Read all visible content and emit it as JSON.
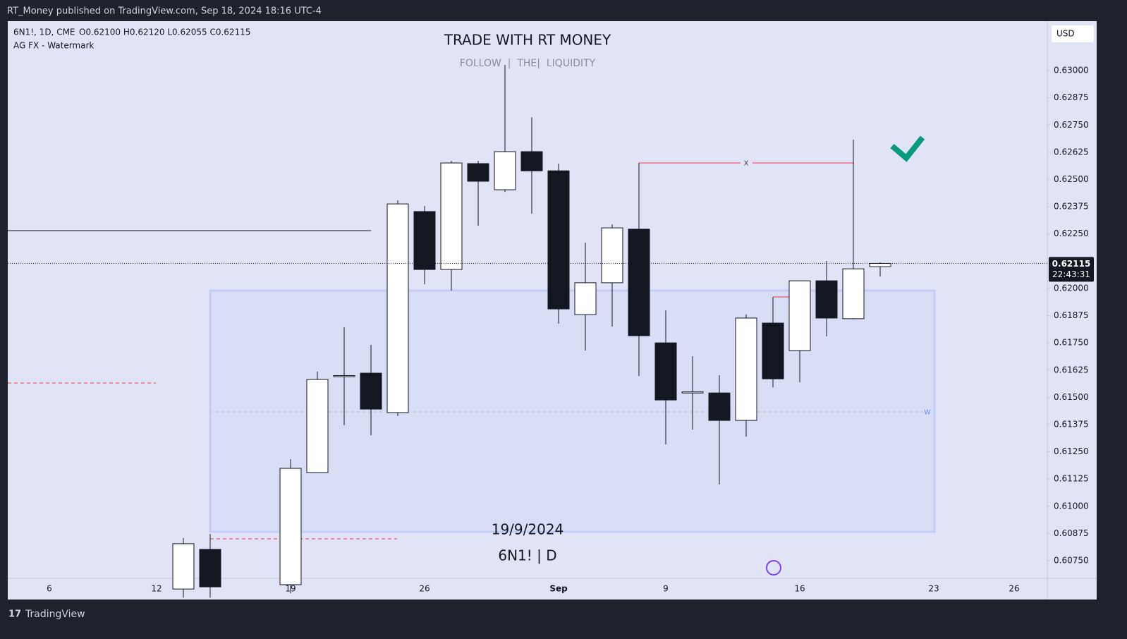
{
  "header": {
    "publisher": "RT_Money published on TradingView.com, Sep 18, 2024 18:16 UTC-4",
    "brand": "TradingView"
  },
  "chart_data": {
    "type": "candlestick",
    "symbol": "6N1!, 1D, CME",
    "ohlc_legend": "O0.62100 H0.62120 L0.62055 C0.62115",
    "indicator": "AG FX - Watermark",
    "title": "TRADE WITH RT MONEY",
    "subtitle": "FOLLOW  |  THE|  LIQUIDITY",
    "annotations": [
      "19/9/2024",
      "6N1! | D",
      "x",
      "w"
    ],
    "currency": "USD",
    "last_price": 0.62115,
    "countdown": "22:43:31",
    "categories": [
      "6",
      null,
      null,
      null,
      "12",
      null,
      null,
      null,
      null,
      "19",
      null,
      null,
      null,
      null,
      "26",
      null,
      null,
      null,
      null,
      "Sep",
      null,
      null,
      null,
      "9",
      null,
      null,
      null,
      null,
      "16",
      null,
      null,
      null,
      null,
      "23",
      null,
      null,
      "26"
    ],
    "open": [
      null,
      null,
      null,
      null,
      null,
      0.6062,
      0.60802,
      null,
      null,
      0.6064,
      0.61155,
      0.61595,
      0.61611,
      0.6143,
      0.62353,
      0.62087,
      0.62573,
      0.62453,
      0.62628,
      0.6254,
      0.6188,
      0.62026,
      0.62272,
      0.6175,
      0.6152,
      0.6152,
      0.61394,
      0.61841,
      0.61715,
      0.62035,
      0.61861,
      0.621,
      null,
      null,
      null,
      null,
      null
    ],
    "high": [
      null,
      null,
      null,
      null,
      null,
      0.60854,
      0.60873,
      null,
      null,
      0.61216,
      0.61618,
      0.61822,
      0.61741,
      0.62404,
      0.62378,
      0.62586,
      0.62586,
      0.63026,
      0.62786,
      0.62573,
      0.6221,
      0.62294,
      0.62576,
      0.61899,
      0.61689,
      0.61601,
      0.61881,
      0.61961,
      0.62035,
      0.62126,
      0.62683,
      0.6212,
      null,
      null,
      null,
      null,
      null
    ],
    "low": [
      null,
      null,
      null,
      null,
      null,
      0.6058,
      0.6058,
      null,
      null,
      0.606,
      0.61155,
      0.61372,
      0.61326,
      0.61414,
      0.62019,
      0.6199,
      0.62288,
      0.62443,
      0.62343,
      0.61838,
      0.61715,
      0.61825,
      0.61598,
      0.61284,
      0.61352,
      0.611,
      0.6132,
      0.61546,
      0.61569,
      0.6178,
      0.61858,
      0.62055,
      null,
      null,
      null,
      null,
      null
    ],
    "close": [
      null,
      null,
      null,
      null,
      null,
      0.60828,
      0.6063,
      null,
      null,
      0.61174,
      0.61582,
      0.616,
      0.61446,
      0.62388,
      0.62087,
      0.62576,
      0.62492,
      0.62628,
      0.6254,
      0.61906,
      0.62026,
      0.62278,
      0.61783,
      0.61488,
      0.61525,
      0.61394,
      0.61864,
      0.61585,
      0.62035,
      0.61864,
      0.6209,
      0.62115,
      null,
      null,
      null,
      null,
      null
    ],
    "up_color": "#ffffff",
    "down_color": "#131722",
    "ylim": [
      0.60669,
      0.63227
    ],
    "yticks": [
      {
        "value": 0.63,
        "label": "0.63000"
      },
      {
        "value": 0.62875,
        "label": "0.62875"
      },
      {
        "value": 0.6275,
        "label": "0.62750"
      },
      {
        "value": 0.62625,
        "label": "0.62625"
      },
      {
        "value": 0.625,
        "label": "0.62500"
      },
      {
        "value": 0.62375,
        "label": "0.62375"
      },
      {
        "value": 0.6225,
        "label": "0.62250"
      },
      {
        "value": 0.62,
        "label": "0.62000"
      },
      {
        "value": 0.61875,
        "label": "0.61875"
      },
      {
        "value": 0.6175,
        "label": "0.61750"
      },
      {
        "value": 0.61625,
        "label": "0.61625"
      },
      {
        "value": 0.615,
        "label": "0.61500"
      },
      {
        "value": 0.61375,
        "label": "0.61375"
      },
      {
        "value": 0.6125,
        "label": "0.61250"
      },
      {
        "value": 0.61125,
        "label": "0.61125"
      },
      {
        "value": 0.61,
        "label": "0.61000"
      },
      {
        "value": 0.60875,
        "label": "0.60875"
      },
      {
        "value": 0.6075,
        "label": "0.60750"
      }
    ],
    "grid": false
  }
}
